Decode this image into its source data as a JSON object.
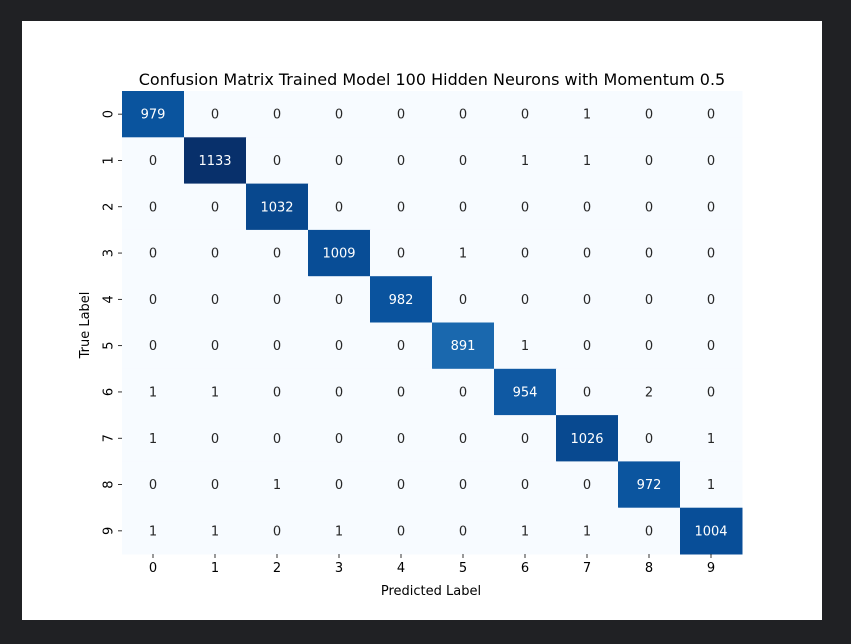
{
  "chart_data": {
    "type": "heatmap",
    "title": "Confusion Matrix Trained Model 100 Hidden Neurons with Momentum 0.5",
    "xlabel": "Predicted Label",
    "ylabel": "True Label",
    "x_categories": [
      "0",
      "1",
      "2",
      "3",
      "4",
      "5",
      "6",
      "7",
      "8",
      "9"
    ],
    "y_categories": [
      "0",
      "1",
      "2",
      "3",
      "4",
      "5",
      "6",
      "7",
      "8",
      "9"
    ],
    "values": [
      [
        979,
        0,
        0,
        0,
        0,
        0,
        0,
        1,
        0,
        0
      ],
      [
        0,
        1133,
        0,
        0,
        0,
        0,
        1,
        1,
        0,
        0
      ],
      [
        0,
        0,
        1032,
        0,
        0,
        0,
        0,
        0,
        0,
        0
      ],
      [
        0,
        0,
        0,
        1009,
        0,
        1,
        0,
        0,
        0,
        0
      ],
      [
        0,
        0,
        0,
        0,
        982,
        0,
        0,
        0,
        0,
        0
      ],
      [
        0,
        0,
        0,
        0,
        0,
        891,
        1,
        0,
        0,
        0
      ],
      [
        1,
        1,
        0,
        0,
        0,
        0,
        954,
        0,
        2,
        0
      ],
      [
        1,
        0,
        0,
        0,
        0,
        0,
        0,
        1026,
        0,
        1
      ],
      [
        0,
        0,
        1,
        0,
        0,
        0,
        0,
        0,
        972,
        1
      ],
      [
        1,
        1,
        0,
        1,
        0,
        0,
        1,
        1,
        0,
        1004
      ]
    ],
    "colormap": "Blues",
    "colorbar": false,
    "annotated": true
  }
}
